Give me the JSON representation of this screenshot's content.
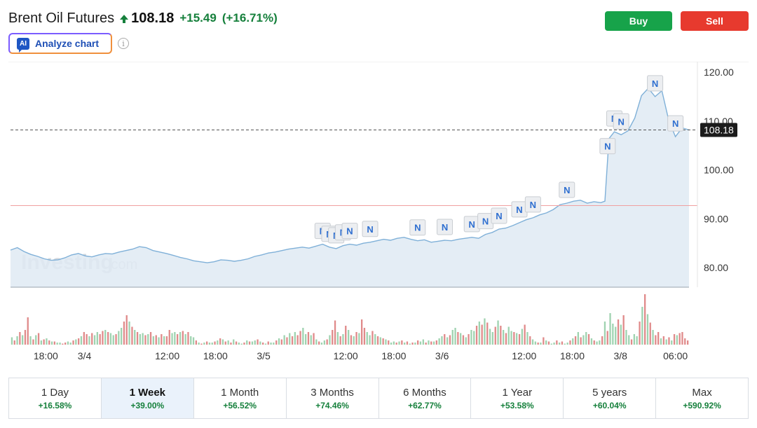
{
  "header": {
    "title": "Brent Oil Futures",
    "price": "108.18",
    "change": "+15.49",
    "change_pct": "(+16.71%)",
    "direction_icon": "up-arrow-icon",
    "analyze_label": "Analyze chart",
    "ai_badge": "AI",
    "info_glyph": "i"
  },
  "actions": {
    "buy": "Buy",
    "sell": "Sell"
  },
  "colors": {
    "up": "#16803c",
    "down": "#d33a3a",
    "line": "#7fb0d8",
    "area": "#dfeaf3",
    "buy": "#17a34a",
    "sell": "#e73a2e"
  },
  "watermark": {
    "brand": "Investing",
    "suffix": ".com"
  },
  "timeframes": [
    {
      "label": "1 Day",
      "change": "+16.58%",
      "active": false
    },
    {
      "label": "1 Week",
      "change": "+39.00%",
      "active": true
    },
    {
      "label": "1 Month",
      "change": "+56.52%",
      "active": false
    },
    {
      "label": "3 Months",
      "change": "+74.46%",
      "active": false
    },
    {
      "label": "6 Months",
      "change": "+62.77%",
      "active": false
    },
    {
      "label": "1 Year",
      "change": "+53.58%",
      "active": false
    },
    {
      "label": "5 years",
      "change": "+60.04%",
      "active": false
    },
    {
      "label": "Max",
      "change": "+590.92%",
      "active": false
    }
  ],
  "chart_data": {
    "type": "area",
    "title": "",
    "xlabel": "",
    "ylabel": "",
    "ylim": [
      76,
      121
    ],
    "y_ticks": [
      "80.00",
      "90.00",
      "100.00",
      "110.00",
      "120.00"
    ],
    "y_tick_values": [
      80,
      90,
      100,
      110,
      120
    ],
    "x_ticks": [
      {
        "label": "18:00",
        "t": 0.052
      },
      {
        "label": "3/4",
        "t": 0.109
      },
      {
        "label": "12:00",
        "t": 0.231
      },
      {
        "label": "18:00",
        "t": 0.302
      },
      {
        "label": "3/5",
        "t": 0.373
      },
      {
        "label": "12:00",
        "t": 0.494
      },
      {
        "label": "18:00",
        "t": 0.565
      },
      {
        "label": "3/6",
        "t": 0.636
      },
      {
        "label": "12:00",
        "t": 0.757
      },
      {
        "label": "18:00",
        "t": 0.828
      },
      {
        "label": "3/8",
        "t": 0.899
      },
      {
        "label": "06:00",
        "t": 0.98
      }
    ],
    "current_price": 108.18,
    "current_price_label": "108.18",
    "reference_level": 92.7,
    "series": [
      {
        "x": [
          0,
          0.01,
          0.02,
          0.03,
          0.04,
          0.05,
          0.06,
          0.07,
          0.08,
          0.09,
          0.1,
          0.11,
          0.12,
          0.13,
          0.14,
          0.15,
          0.16,
          0.17,
          0.18,
          0.19,
          0.2,
          0.21,
          0.22,
          0.23,
          0.24,
          0.25,
          0.26,
          0.27,
          0.28,
          0.29,
          0.3,
          0.31,
          0.32,
          0.33,
          0.34,
          0.35,
          0.36,
          0.37,
          0.38,
          0.39,
          0.4,
          0.41,
          0.42,
          0.43,
          0.44,
          0.45,
          0.46,
          0.47,
          0.48,
          0.49,
          0.5,
          0.51,
          0.52,
          0.53,
          0.54,
          0.55,
          0.56,
          0.57,
          0.58,
          0.59,
          0.6,
          0.61,
          0.62,
          0.63,
          0.64,
          0.65,
          0.66,
          0.67,
          0.68,
          0.69,
          0.7,
          0.71,
          0.72,
          0.73,
          0.74,
          0.75,
          0.76,
          0.77,
          0.78,
          0.79,
          0.8,
          0.81,
          0.82,
          0.83,
          0.84,
          0.85,
          0.86,
          0.87,
          0.876,
          0.882,
          0.89,
          0.9,
          0.91,
          0.92,
          0.93,
          0.94,
          0.95,
          0.96,
          0.97,
          0.98,
          0.99,
          1.0
        ],
        "values": [
          83.6,
          84.1,
          83.3,
          82.7,
          82.3,
          81.8,
          81.5,
          81.6,
          82.0,
          82.6,
          82.9,
          82.4,
          82.2,
          82.6,
          82.9,
          82.8,
          83.2,
          83.5,
          83.8,
          84.3,
          84.1,
          83.5,
          83.2,
          82.9,
          82.5,
          82.1,
          81.8,
          81.4,
          81.2,
          81.0,
          81.2,
          81.6,
          81.5,
          81.3,
          81.5,
          81.8,
          82.3,
          82.6,
          83.0,
          83.2,
          83.5,
          83.8,
          84.0,
          84.2,
          84.0,
          84.4,
          84.8,
          84.2,
          83.9,
          84.5,
          84.8,
          84.6,
          85.0,
          85.2,
          85.5,
          85.8,
          85.6,
          86.0,
          86.2,
          85.8,
          85.5,
          85.7,
          85.2,
          85.4,
          85.6,
          85.5,
          85.8,
          86.0,
          86.2,
          86.0,
          86.8,
          87.2,
          87.9,
          88.1,
          88.6,
          89.2,
          89.8,
          90.2,
          90.8,
          91.2,
          91.9,
          92.9,
          93.2,
          93.6,
          93.8,
          93.2,
          93.5,
          93.3,
          93.6,
          106.4,
          107.8,
          107.2,
          108.0,
          110.6,
          115.2,
          116.7,
          115.0,
          116.2,
          110.2,
          106.8,
          108.6,
          108.18
        ],
        "label_at": []
      }
    ],
    "news_markers": [
      0.46,
      0.47,
      0.48,
      0.49,
      0.5,
      0.53,
      0.6,
      0.64,
      0.68,
      0.7,
      0.72,
      0.75,
      0.77,
      0.82,
      0.88,
      0.89,
      0.9,
      0.95,
      0.98
    ],
    "news_marker_label": "N",
    "volume": {
      "values": [
        7,
        4,
        8,
        12,
        9,
        14,
        26,
        8,
        5,
        9,
        11,
        4,
        5,
        6,
        4,
        3,
        3,
        2,
        2,
        1,
        2,
        3,
        2,
        4,
        5,
        6,
        8,
        12,
        10,
        8,
        11,
        9,
        12,
        10,
        13,
        14,
        12,
        11,
        9,
        10,
        13,
        16,
        22,
        28,
        22,
        17,
        14,
        12,
        10,
        11,
        9,
        10,
        12,
        8,
        9,
        7,
        10,
        8,
        8,
        14,
        11,
        12,
        10,
        12,
        13,
        10,
        12,
        8,
        7,
        4,
        2,
        1,
        2,
        3,
        2,
        2,
        3,
        4,
        6,
        5,
        3,
        4,
        2,
        5,
        3,
        2,
        1,
        2,
        4,
        3,
        3,
        4,
        5,
        3,
        2,
        1,
        3,
        2,
        2,
        4,
        6,
        5,
        9,
        7,
        11,
        8,
        12,
        9,
        13,
        16,
        10,
        12,
        9,
        11,
        5,
        3,
        2,
        4,
        5,
        9,
        14,
        23,
        12,
        8,
        10,
        18,
        14,
        9,
        8,
        12,
        11,
        24,
        16,
        12,
        9,
        13,
        10,
        8,
        7,
        6,
        5,
        4,
        2,
        3,
        2,
        3,
        4,
        2,
        3,
        1,
        2,
        2,
        4,
        3,
        5,
        2,
        4,
        3,
        3,
        4,
        6,
        8,
        10,
        7,
        9,
        14,
        16,
        12,
        11,
        9,
        7,
        10,
        14,
        13,
        18,
        22,
        19,
        25,
        21,
        15,
        12,
        17,
        23,
        18,
        14,
        11,
        17,
        13,
        12,
        11,
        10,
        15,
        19,
        12,
        8,
        5,
        3,
        2,
        2,
        7,
        4,
        3,
        1,
        2,
        4,
        2,
        3,
        1,
        2,
        4,
        6,
        8,
        12,
        7,
        9,
        12,
        10,
        6,
        4,
        3,
        4,
        8,
        22,
        13,
        30,
        20,
        17,
        24,
        19,
        28,
        14,
        9,
        5,
        10,
        8,
        22,
        36,
        48,
        29,
        21,
        14,
        9,
        12,
        6,
        8,
        5,
        7,
        4,
        10,
        9,
        11,
        12,
        6,
        4
      ],
      "up": [
        1,
        0,
        1,
        0,
        1,
        0,
        0,
        1,
        0,
        1,
        0,
        1,
        0,
        1,
        0,
        1,
        0,
        1,
        1,
        0,
        0,
        1,
        1,
        0,
        1,
        0,
        1,
        0,
        0,
        1,
        0,
        1,
        1,
        0,
        0,
        1,
        0,
        1,
        1,
        0,
        1,
        1,
        0,
        0,
        1,
        0,
        1,
        0,
        1,
        1,
        0,
        1,
        0,
        1,
        0,
        1,
        0,
        1,
        0,
        0,
        1,
        1,
        0,
        1,
        0,
        1,
        0,
        1,
        1,
        0,
        1,
        0,
        1,
        0,
        1,
        1,
        0,
        1,
        0,
        1,
        0,
        1,
        0,
        1,
        0,
        1,
        1,
        0,
        1,
        0,
        1,
        1,
        0,
        1,
        0,
        1,
        0,
        1,
        1,
        0,
        1,
        0,
        1,
        0,
        1,
        0,
        1,
        0,
        0,
        1,
        1,
        0,
        1,
        0,
        1,
        0,
        1,
        1,
        0,
        1,
        0,
        0,
        1,
        0,
        1,
        0,
        1,
        0,
        1,
        0,
        1,
        0,
        0,
        1,
        1,
        0,
        1,
        0,
        1,
        0,
        1,
        0,
        1,
        1,
        0,
        1,
        0,
        1,
        0,
        1,
        0,
        1,
        0,
        1,
        1,
        0,
        1,
        0,
        1,
        0,
        1,
        1,
        0,
        1,
        0,
        1,
        1,
        0,
        1,
        0,
        1,
        0,
        1,
        1,
        0,
        1,
        0,
        1,
        0,
        1,
        1,
        0,
        1,
        0,
        1,
        0,
        1,
        1,
        0,
        1,
        0,
        1,
        0,
        1,
        0,
        1,
        1,
        0,
        1,
        0,
        1,
        0,
        1,
        1,
        0,
        1,
        0,
        1,
        1,
        0,
        1,
        0,
        1,
        0,
        1,
        1,
        0,
        1,
        0,
        1,
        1,
        0,
        1,
        0,
        1,
        1,
        1,
        0,
        1,
        0,
        1,
        1,
        0,
        1,
        1,
        0,
        1,
        0,
        1,
        0,
        1,
        0,
        0,
        1,
        0,
        1,
        0,
        1,
        0,
        1,
        0,
        0,
        0
      ]
    }
  }
}
